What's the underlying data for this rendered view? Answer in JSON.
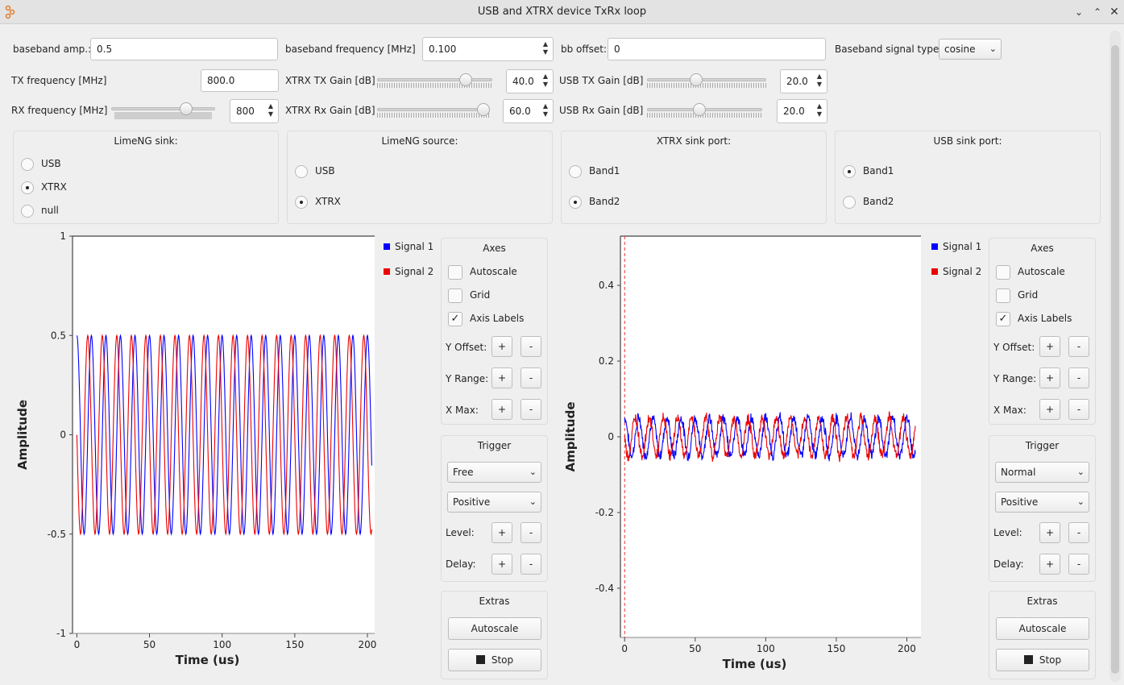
{
  "window": {
    "title": "USB and XTRX device TxRx loop",
    "app_icon": "gnuradio-icon"
  },
  "params": {
    "baseband_amp": {
      "label": "baseband amp.:",
      "value": "0.5"
    },
    "baseband_freq": {
      "label": "baseband frequency [MHz]",
      "value": "0.100"
    },
    "bb_offset": {
      "label": "bb offset:",
      "value": "0"
    },
    "signal_type": {
      "label": "Baseband signal type:",
      "value": "cosine"
    },
    "tx_freq": {
      "label": "TX frequency [MHz]",
      "value": "800.0"
    },
    "xtrx_tx_gain": {
      "label": "XTRX TX Gain [dB]",
      "value": "40.0",
      "level": 0.8
    },
    "usb_tx_gain": {
      "label": "USB TX Gain [dB]",
      "value": "20.0",
      "level": 0.4
    },
    "rx_freq": {
      "label": "RX frequency [MHz]",
      "value": "800",
      "level": 0.75
    },
    "xtrx_rx_gain": {
      "label": "XTRX Rx Gain [dB]",
      "value": "60.0",
      "level": 1.0
    },
    "usb_rx_gain": {
      "label": "USB Rx Gain [dB]",
      "value": "20.0",
      "level": 0.45
    }
  },
  "groups": {
    "limeng_sink": {
      "title": "LimeNG sink:",
      "options": [
        "USB",
        "XTRX",
        "null"
      ],
      "selected": "XTRX"
    },
    "limeng_source": {
      "title": "LimeNG source:",
      "options": [
        "USB",
        "XTRX"
      ],
      "selected": "XTRX"
    },
    "xtrx_sink_port": {
      "title": "XTRX sink port:",
      "options": [
        "Band1",
        "Band2"
      ],
      "selected": "Band2"
    },
    "usb_sink_port": {
      "title": "USB sink port:",
      "options": [
        "Band1",
        "Band2"
      ],
      "selected": "Band1"
    }
  },
  "scope_controls": {
    "axes_title": "Axes",
    "autoscale": "Autoscale",
    "grid": "Grid",
    "axis_labels": "Axis Labels",
    "y_offset": "Y Offset:",
    "y_range": "Y Range:",
    "x_max": "X Max:",
    "plus": "+",
    "minus": "-",
    "trigger_title": "Trigger",
    "slope": "Positive",
    "level": "Level:",
    "delay": "Delay:",
    "extras_title": "Extras",
    "autoscale_button": "Autoscale",
    "stop_button": "Stop"
  },
  "scopes": [
    {
      "trigger_mode": "Free",
      "checks": {
        "autoscale": false,
        "grid": false,
        "axis_labels": true
      }
    },
    {
      "trigger_mode": "Normal",
      "checks": {
        "autoscale": false,
        "grid": false,
        "axis_labels": true
      }
    }
  ],
  "colors": {
    "signal1": "#0000ff",
    "signal2": "#ee0000"
  },
  "chart_data": [
    {
      "type": "line",
      "xlabel": "Time (us)",
      "ylabel": "Amplitude",
      "xlim": [
        -3,
        205
      ],
      "ylim": [
        -1,
        1
      ],
      "xticks": [
        "0",
        "50",
        "100",
        "150",
        "200"
      ],
      "yticks": [
        "1",
        "0.5",
        "0",
        "-0.5",
        "-1"
      ],
      "ytick_values": [
        1,
        0.5,
        0,
        -0.5,
        -1
      ],
      "xtick_values": [
        0,
        50,
        100,
        150,
        200
      ],
      "series": [
        {
          "name": "Signal 1",
          "color": "#0000ff",
          "amplitude": 0.5,
          "frequency_mhz": 0.1,
          "phase": 0
        },
        {
          "name": "Signal 2",
          "color": "#ee0000",
          "amplitude": 0.5,
          "frequency_mhz": 0.1,
          "phase": 1.5708
        }
      ],
      "grid": false,
      "legend": "right"
    },
    {
      "type": "line",
      "xlabel": "Time (us)",
      "ylabel": "Amplitude",
      "xlim": [
        -3,
        210
      ],
      "ylim": [
        -0.53,
        0.53
      ],
      "xticks": [
        "0",
        "50",
        "100",
        "150",
        "200"
      ],
      "yticks": [
        "0.4",
        "0.2",
        "0",
        "-0.2",
        "-0.4"
      ],
      "ytick_values": [
        0.4,
        0.2,
        0,
        -0.2,
        -0.4
      ],
      "xtick_values": [
        0,
        50,
        100,
        150,
        200
      ],
      "series": [
        {
          "name": "Signal 1",
          "color": "#0000ff",
          "amplitude": 0.05,
          "frequency_mhz": 0.1,
          "phase": 0,
          "noise": 0.012
        },
        {
          "name": "Signal 2",
          "color": "#ee0000",
          "amplitude": 0.05,
          "frequency_mhz": 0.1,
          "phase": 1.5708,
          "noise": 0.012
        }
      ],
      "trigger_marker_x": 0,
      "grid": false,
      "legend": "right"
    }
  ]
}
